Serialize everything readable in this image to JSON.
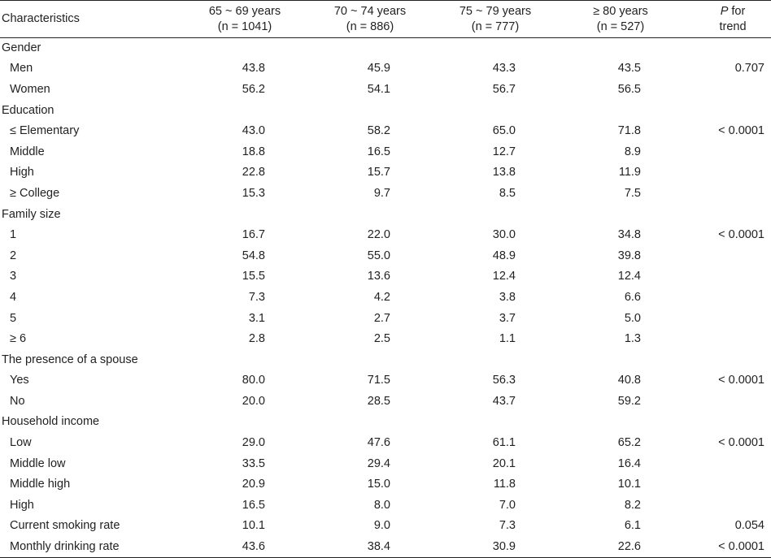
{
  "header": {
    "characteristics": "Characteristics",
    "groups": [
      {
        "line1": "65 ~ 69 years",
        "line2": "(n = 1041)"
      },
      {
        "line1": "70 ~ 74 years",
        "line2": "(n = 886)"
      },
      {
        "line1": "75 ~ 79 years",
        "line2": "(n = 777)"
      },
      {
        "line1": "≥ 80 years",
        "line2": "(n = 527)"
      }
    ],
    "p_italic": "P",
    "p_rest": " for",
    "p_line2": "trend"
  },
  "rows": [
    {
      "type": "category",
      "label": "Gender"
    },
    {
      "type": "item",
      "label": "Men",
      "values": [
        "43.8",
        "45.9",
        "43.3",
        "43.5"
      ],
      "p": "0.707"
    },
    {
      "type": "item",
      "label": "Women",
      "values": [
        "56.2",
        "54.1",
        "56.7",
        "56.5"
      ],
      "p": ""
    },
    {
      "type": "category",
      "label": "Education"
    },
    {
      "type": "item",
      "label": "≤ Elementary",
      "values": [
        "43.0",
        "58.2",
        "65.0",
        "71.8"
      ],
      "p": "< 0.0001"
    },
    {
      "type": "item",
      "label": "Middle",
      "values": [
        "18.8",
        "16.5",
        "12.7",
        "8.9"
      ],
      "p": ""
    },
    {
      "type": "item",
      "label": "High",
      "values": [
        "22.8",
        "15.7",
        "13.8",
        "11.9"
      ],
      "p": ""
    },
    {
      "type": "item",
      "label": "≥ College",
      "values": [
        "15.3",
        "9.7",
        "8.5",
        "7.5"
      ],
      "p": ""
    },
    {
      "type": "category",
      "label": "Family size"
    },
    {
      "type": "item",
      "label": "1",
      "values": [
        "16.7",
        "22.0",
        "30.0",
        "34.8"
      ],
      "p": "< 0.0001"
    },
    {
      "type": "item",
      "label": "2",
      "values": [
        "54.8",
        "55.0",
        "48.9",
        "39.8"
      ],
      "p": ""
    },
    {
      "type": "item",
      "label": "3",
      "values": [
        "15.5",
        "13.6",
        "12.4",
        "12.4"
      ],
      "p": ""
    },
    {
      "type": "item",
      "label": "4",
      "values": [
        "7.3",
        "4.2",
        "3.8",
        "6.6"
      ],
      "p": ""
    },
    {
      "type": "item",
      "label": "5",
      "values": [
        "3.1",
        "2.7",
        "3.7",
        "5.0"
      ],
      "p": ""
    },
    {
      "type": "item",
      "label": "≥ 6",
      "values": [
        "2.8",
        "2.5",
        "1.1",
        "1.3"
      ],
      "p": ""
    },
    {
      "type": "category",
      "label": "The presence of a spouse"
    },
    {
      "type": "item",
      "label": "Yes",
      "values": [
        "80.0",
        "71.5",
        "56.3",
        "40.8"
      ],
      "p": "< 0.0001"
    },
    {
      "type": "item",
      "label": "No",
      "values": [
        "20.0",
        "28.5",
        "43.7",
        "59.2"
      ],
      "p": ""
    },
    {
      "type": "category",
      "label": "Household income"
    },
    {
      "type": "item",
      "label": "Low",
      "values": [
        "29.0",
        "47.6",
        "61.1",
        "65.2"
      ],
      "p": "< 0.0001"
    },
    {
      "type": "item",
      "label": "Middle low",
      "values": [
        "33.5",
        "29.4",
        "20.1",
        "16.4"
      ],
      "p": ""
    },
    {
      "type": "item",
      "label": "Middle high",
      "values": [
        "20.9",
        "15.0",
        "11.8",
        "10.1"
      ],
      "p": ""
    },
    {
      "type": "item",
      "label": "High",
      "values": [
        "16.5",
        "8.0",
        "7.0",
        "8.2"
      ],
      "p": ""
    },
    {
      "type": "item",
      "label": "Current smoking rate",
      "values": [
        "10.1",
        "9.0",
        "7.3",
        "6.1"
      ],
      "p": "0.054"
    },
    {
      "type": "item",
      "label": "Monthly drinking rate",
      "values": [
        "43.6",
        "38.4",
        "30.9",
        "22.6"
      ],
      "p": "< 0.0001"
    }
  ]
}
